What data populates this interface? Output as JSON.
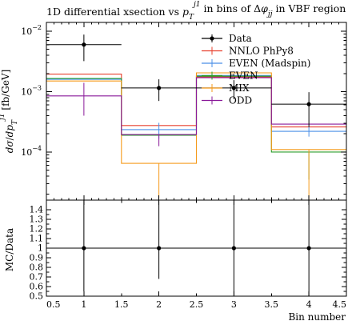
{
  "title_parts": {
    "prefix": "1D differential xsection vs ",
    "var_base": "p",
    "var_sub": "T",
    "var_sup": "j1",
    "middle": " in bins of Δ",
    "dphi_base": "φ",
    "dphi_sub": "jj",
    "suffix": " in VBF region"
  },
  "y_label_parts": {
    "d": "d",
    "sigma": "σ",
    "slash": "/",
    "dp": "dp",
    "sub": "T",
    "sup": "j1",
    "unit": " [fb/GeV]"
  },
  "ratio_ylabel": "MC/Data",
  "xlabel": "Bin number",
  "chart_data": [
    {
      "type": "line",
      "panel": "main",
      "x_edges": [
        0.5,
        1.5,
        2.5,
        3.5,
        4.5
      ],
      "xlim": [
        0.5,
        4.5
      ],
      "ylim": [
        1.6e-05,
        0.014
      ],
      "yscale": "log",
      "x_tick_labels": [
        "0.5",
        "1",
        "1.5",
        "2",
        "2.5",
        "3",
        "3.5",
        "4",
        "4.5"
      ],
      "x_ticks": [
        0.5,
        1,
        1.5,
        2,
        2.5,
        3,
        3.5,
        4,
        4.5
      ],
      "y_tick_labels": [
        {
          "value": 0.01,
          "mantissa": "10",
          "exp": "−2"
        },
        {
          "value": 0.001,
          "mantissa": "10",
          "exp": "−3"
        },
        {
          "value": 0.0001,
          "mantissa": "10",
          "exp": "−4"
        }
      ],
      "legend_position": "top-right",
      "data": {
        "name": "Data",
        "color": "#000000",
        "x": [
          1,
          2,
          3,
          4
        ],
        "y": [
          0.006,
          0.00115,
          0.00115,
          0.00062
        ],
        "yerr_low": [
          0.0028,
          0.00045,
          0.0004,
          0.00036
        ],
        "yerr_high": [
          0.0028,
          0.00045,
          0.0004,
          0.00036
        ]
      },
      "series": [
        {
          "name": "NNLO PhPy8",
          "color": "#e8412f",
          "values": [
            0.00195,
            0.000275,
            0.00175,
            0.00026
          ],
          "err_low": [
            0.0,
            0.0,
            0.0,
            0.0
          ],
          "err_high": [
            0.0,
            0.0,
            0.0,
            0.0
          ],
          "marker_x": [
            1,
            2,
            3,
            4
          ]
        },
        {
          "name": "EVEN (Madspin)",
          "color": "#4a8fe8",
          "values": [
            0.0016,
            0.000235,
            0.00185,
            0.00022
          ],
          "err_low": [
            0.0,
            7e-05,
            0.0,
            4e-05
          ],
          "err_high": [
            0.0,
            7e-05,
            0.0,
            4e-05
          ],
          "marker_x": [
            1,
            2,
            3,
            4
          ]
        },
        {
          "name": "EVEN",
          "color": "#2a9d2a",
          "values": [
            0.00165,
            0.00019,
            0.0018,
            0.0001
          ],
          "err_low": [
            0.0,
            0.0,
            0.0,
            6.5e-05
          ],
          "err_high": [
            0.0,
            0.0,
            0.0,
            0.0
          ],
          "marker_x": [
            1,
            2,
            3,
            4
          ]
        },
        {
          "name": "MIX",
          "color": "#f59a1a",
          "values": [
            0.0015,
            6.5e-05,
            0.00205,
            0.00011
          ],
          "err_low": [
            0.0,
            4.8e-05,
            0.0,
            9.5e-05
          ],
          "err_high": [
            0.0,
            0.0,
            0.0,
            0.0
          ],
          "marker_x": [
            1,
            2,
            3,
            4
          ]
        },
        {
          "name": "ODD",
          "color": "#8a1a9a",
          "values": [
            0.00085,
            0.000195,
            0.0017,
            0.00029
          ],
          "err_low": [
            0.00045,
            7e-05,
            0.0,
            0.0
          ],
          "err_high": [
            0.00055,
            0.0,
            0.0,
            0.0
          ],
          "marker_x": [
            1,
            2,
            3,
            4
          ]
        }
      ]
    },
    {
      "type": "scatter",
      "panel": "ratio",
      "xlim": [
        0.5,
        4.5
      ],
      "ylim": [
        0.5,
        1.5
      ],
      "y_ticks": [
        0.5,
        0.55,
        0.6,
        0.65,
        0.7,
        0.75,
        0.8,
        0.85,
        0.9,
        0.95,
        1,
        1.05,
        1.1,
        1.15,
        1.2,
        1.25,
        1.3,
        1.35,
        1.4
      ],
      "y_tick_labels": [
        "0.5",
        "0.6",
        "0.7",
        "0.8",
        "0.9",
        "1",
        "1.1",
        "1.2",
        "1.3",
        "1.4"
      ],
      "y_tick_label_values": [
        0.5,
        0.6,
        0.7,
        0.8,
        0.9,
        1,
        1.1,
        1.2,
        1.3,
        1.4
      ],
      "reference_line": 1,
      "x": [
        1,
        2,
        3,
        4
      ],
      "y": [
        1,
        1,
        1,
        1
      ],
      "yerr_low": [
        0.45,
        0.32,
        0.52,
        0.58
      ],
      "yerr_high": [
        0.52,
        0.55,
        0.52,
        0.58
      ]
    }
  ]
}
